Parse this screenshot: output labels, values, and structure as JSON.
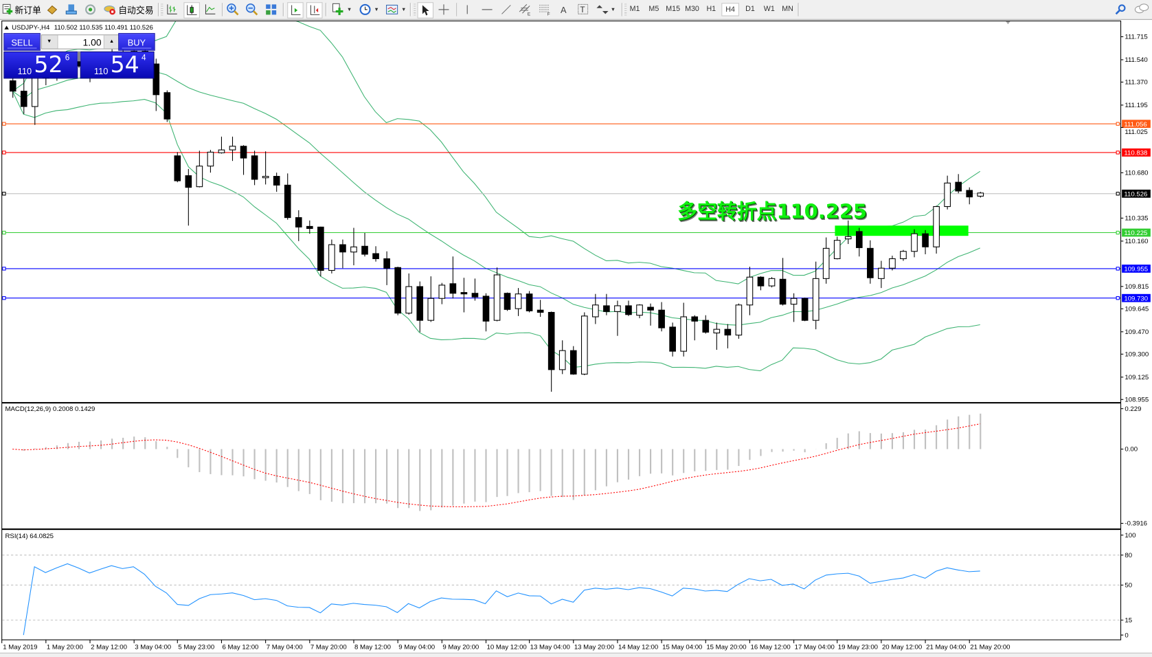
{
  "toolbar": {
    "new_order_label": "新订单",
    "auto_trading_label": "自动交易",
    "icons": [
      "new-order-icon",
      "history-center-icon",
      "profile-icon",
      "signal-icon",
      "auto-trading-icon",
      "bar-chart-icon",
      "candlestick-icon",
      "line-chart-icon",
      "zoom-in-icon",
      "zoom-out-icon",
      "tile-windows-icon",
      "auto-scroll-icon",
      "chart-shift-icon",
      "indicators-icon",
      "periods-icon",
      "templates-icon",
      "cursor-icon",
      "crosshair-icon",
      "vertical-line-icon",
      "horizontal-line-icon",
      "trendline-icon",
      "equidistant-channel-icon",
      "fibonacci-icon",
      "text-icon",
      "text-label-icon",
      "arrows-icon",
      "search-icon",
      "chat-icon"
    ],
    "timeframes": [
      "M1",
      "M5",
      "M15",
      "M30",
      "H1",
      "H4",
      "D1",
      "W1",
      "MN"
    ],
    "active_timeframe": "H4"
  },
  "chart_header": {
    "symbol": "USDJPY-,H4",
    "ohlc": "110.502 110.535 110.491 110.526"
  },
  "trade_panel": {
    "sell_label": "SELL",
    "buy_label": "BUY",
    "lots": "1.00",
    "bid": {
      "prefix": "110",
      "main": "52",
      "sup": "6"
    },
    "ask": {
      "prefix": "110",
      "main": "54",
      "sup": "4"
    }
  },
  "chart_data": {
    "type": "candlestick",
    "symbol": "USDJPY",
    "timeframe": "H4",
    "ohlc_fields": [
      "open",
      "high",
      "low",
      "close"
    ],
    "candles": [
      [
        111.38,
        111.464,
        111.251,
        111.301
      ],
      [
        111.301,
        111.408,
        111.128,
        111.184
      ],
      [
        111.184,
        111.464,
        111.044,
        111.436
      ],
      [
        111.436,
        111.48,
        111.346,
        111.402
      ],
      [
        111.413,
        111.48,
        111.38,
        111.458
      ],
      [
        111.458,
        111.548,
        111.436,
        111.525
      ],
      [
        111.525,
        111.604,
        111.48,
        111.492
      ],
      [
        111.492,
        111.559,
        111.369,
        111.447
      ],
      [
        111.447,
        111.536,
        111.413,
        111.514
      ],
      [
        111.514,
        111.626,
        111.48,
        111.592
      ],
      [
        111.592,
        111.659,
        111.525,
        111.559
      ],
      [
        111.559,
        111.637,
        111.458,
        111.604
      ],
      [
        111.604,
        111.671,
        111.469,
        111.503
      ],
      [
        111.508,
        111.548,
        111.15,
        111.274
      ],
      [
        111.29,
        111.307,
        111.067,
        111.089
      ],
      [
        110.809,
        110.837,
        110.608,
        110.619
      ],
      [
        110.658,
        110.709,
        110.278,
        110.569
      ],
      [
        110.574,
        110.848,
        110.569,
        110.731
      ],
      [
        110.731,
        110.854,
        110.681,
        110.837
      ],
      [
        110.832,
        110.955,
        110.826,
        110.854
      ],
      [
        110.854,
        110.955,
        110.77,
        110.882
      ],
      [
        110.882,
        110.89,
        110.664,
        110.792
      ],
      [
        110.809,
        110.848,
        110.586,
        110.63
      ],
      [
        110.642,
        110.843,
        110.591,
        110.653
      ],
      [
        110.653,
        110.681,
        110.535,
        110.586
      ],
      [
        110.586,
        110.675,
        110.323,
        110.339
      ],
      [
        110.339,
        110.395,
        110.16,
        110.267
      ],
      [
        110.272,
        110.317,
        110.216,
        110.256
      ],
      [
        110.267,
        110.27,
        109.892,
        109.937
      ],
      [
        109.937,
        110.172,
        109.914,
        110.133
      ],
      [
        110.133,
        110.172,
        109.954,
        110.077
      ],
      [
        110.077,
        110.261,
        109.976,
        110.116
      ],
      [
        110.121,
        110.222,
        110.043,
        110.06
      ],
      [
        110.065,
        110.121,
        110.004,
        110.026
      ],
      [
        110.026,
        110.082,
        109.825,
        109.954
      ],
      [
        109.959,
        109.965,
        109.596,
        109.612
      ],
      [
        109.612,
        109.914,
        109.601,
        109.814
      ],
      [
        109.814,
        109.853,
        109.467,
        109.557
      ],
      [
        109.557,
        109.892,
        109.545,
        109.724
      ],
      [
        109.724,
        109.842,
        109.68,
        109.825
      ],
      [
        109.836,
        110.043,
        109.724,
        109.763
      ],
      [
        109.769,
        109.881,
        109.618,
        109.758
      ],
      [
        109.763,
        109.875,
        109.707,
        109.735
      ],
      [
        109.741,
        109.763,
        109.473,
        109.551
      ],
      [
        109.557,
        109.959,
        109.55,
        109.903
      ],
      [
        109.763,
        109.769,
        109.629,
        109.64
      ],
      [
        109.646,
        109.803,
        109.59,
        109.758
      ],
      [
        109.758,
        109.78,
        109.618,
        109.629
      ],
      [
        109.635,
        109.713,
        109.584,
        109.618
      ],
      [
        109.618,
        109.624,
        109.014,
        109.182
      ],
      [
        109.182,
        109.405,
        109.148,
        109.327
      ],
      [
        109.327,
        109.361,
        109.143,
        109.148
      ],
      [
        109.148,
        109.618,
        109.14,
        109.59
      ],
      [
        109.584,
        109.758,
        109.529,
        109.674
      ],
      [
        109.668,
        109.758,
        109.596,
        109.624
      ],
      [
        109.624,
        109.707,
        109.439,
        109.668
      ],
      [
        109.668,
        109.707,
        109.59,
        109.601
      ],
      [
        109.596,
        109.68,
        109.573,
        109.674
      ],
      [
        109.657,
        109.685,
        109.517,
        109.635
      ],
      [
        109.635,
        109.696,
        109.473,
        109.5
      ],
      [
        109.506,
        109.54,
        109.282,
        109.322
      ],
      [
        109.322,
        109.691,
        109.282,
        109.584
      ],
      [
        109.584,
        109.596,
        109.405,
        109.551
      ],
      [
        109.557,
        109.596,
        109.456,
        109.467
      ],
      [
        109.461,
        109.54,
        109.333,
        109.489
      ],
      [
        109.489,
        109.529,
        109.344,
        109.445
      ],
      [
        109.445,
        109.685,
        109.417,
        109.674
      ],
      [
        109.674,
        109.965,
        109.596,
        109.886
      ],
      [
        109.886,
        109.892,
        109.786,
        109.819
      ],
      [
        109.819,
        109.886,
        109.808,
        109.875
      ],
      [
        109.87,
        110.032,
        109.67,
        109.68
      ],
      [
        109.68,
        109.763,
        109.545,
        109.724
      ],
      [
        109.724,
        109.73,
        109.551,
        109.557
      ],
      [
        109.557,
        110.004,
        109.489,
        109.875
      ],
      [
        109.875,
        110.188,
        109.836,
        110.105
      ],
      [
        110.026,
        110.194,
        110.021,
        110.166
      ],
      [
        110.177,
        110.317,
        110.138,
        110.194
      ],
      [
        110.233,
        110.261,
        110.043,
        110.11
      ],
      [
        110.105,
        110.166,
        109.836,
        109.881
      ],
      [
        109.875,
        110.01,
        109.803,
        109.954
      ],
      [
        109.954,
        110.049,
        109.937,
        110.026
      ],
      [
        110.026,
        110.093,
        110.01,
        110.082
      ],
      [
        110.082,
        110.25,
        110.037,
        110.216
      ],
      [
        110.216,
        110.244,
        110.06,
        110.116
      ],
      [
        110.116,
        110.429,
        110.065,
        110.423
      ],
      [
        110.423,
        110.658,
        110.401,
        110.602
      ],
      [
        110.608,
        110.67,
        110.524,
        110.541
      ],
      [
        110.546,
        110.569,
        110.44,
        110.496
      ],
      [
        110.502,
        110.535,
        110.491,
        110.526
      ]
    ],
    "price_axis": {
      "range": [
        108.955,
        111.8
      ],
      "ticks": [
        "111.715",
        "111.540",
        "111.370",
        "111.195",
        "111.025",
        "110.680",
        "110.335",
        "110.160",
        "109.815",
        "109.645",
        "109.470",
        "109.300",
        "109.125",
        "108.955"
      ]
    },
    "time_labels": [
      "1 May 2019",
      "1 May 20:00",
      "2 May 12:00",
      "3 May 04:00",
      "5 May 23:00",
      "6 May 12:00",
      "7 May 04:00",
      "7 May 20:00",
      "8 May 12:00",
      "9 May 04:00",
      "9 May 20:00",
      "10 May 12:00",
      "13 May 04:00",
      "13 May 20:00",
      "14 May 12:00",
      "15 May 04:00",
      "15 May 20:00",
      "16 May 12:00",
      "17 May 04:00",
      "19 May 23:00",
      "20 May 12:00",
      "21 May 04:00",
      "21 May 20:00"
    ],
    "horizontal_levels": [
      {
        "price": 111.056,
        "label": "111.056",
        "color": "#ff5a14"
      },
      {
        "price": 110.838,
        "label": "110.838",
        "color": "#ff0000"
      },
      {
        "price": 110.225,
        "label": "110.225",
        "color": "#32cd32"
      },
      {
        "price": 109.955,
        "label": "109.955",
        "color": "#0000ff"
      },
      {
        "price": 109.73,
        "label": "109.730",
        "color": "#0000ff"
      }
    ],
    "bid_line": {
      "price": 110.526,
      "label": "110.526",
      "color": "#c0c0c0",
      "label_bg": "#000000"
    },
    "annotation": {
      "text": "多空转折点110.225",
      "color": "#10f010"
    },
    "zone": {
      "price_top": 110.278,
      "price_bottom": 110.2,
      "from_bar": 75,
      "to_bar": 87,
      "color": "#00ff00"
    },
    "bollinger": {
      "period": 20,
      "deviation": 2,
      "color": "#3cb371"
    },
    "macd": {
      "header": "MACD(12,26,9) 0.2008 0.1429",
      "axis_labels": [
        "0.229",
        "0.00",
        "-0.3916"
      ],
      "range": [
        -0.3916,
        0.229
      ],
      "histogram_color": "#c0c0c0",
      "signal_color": "#ff0000"
    },
    "rsi": {
      "header": "RSI(14) 64.0825",
      "axis_labels": [
        "100",
        "80",
        "50",
        "15",
        "0"
      ],
      "levels": [
        80,
        50,
        15
      ],
      "range": [
        0,
        100
      ],
      "color": "#1e90ff"
    }
  }
}
